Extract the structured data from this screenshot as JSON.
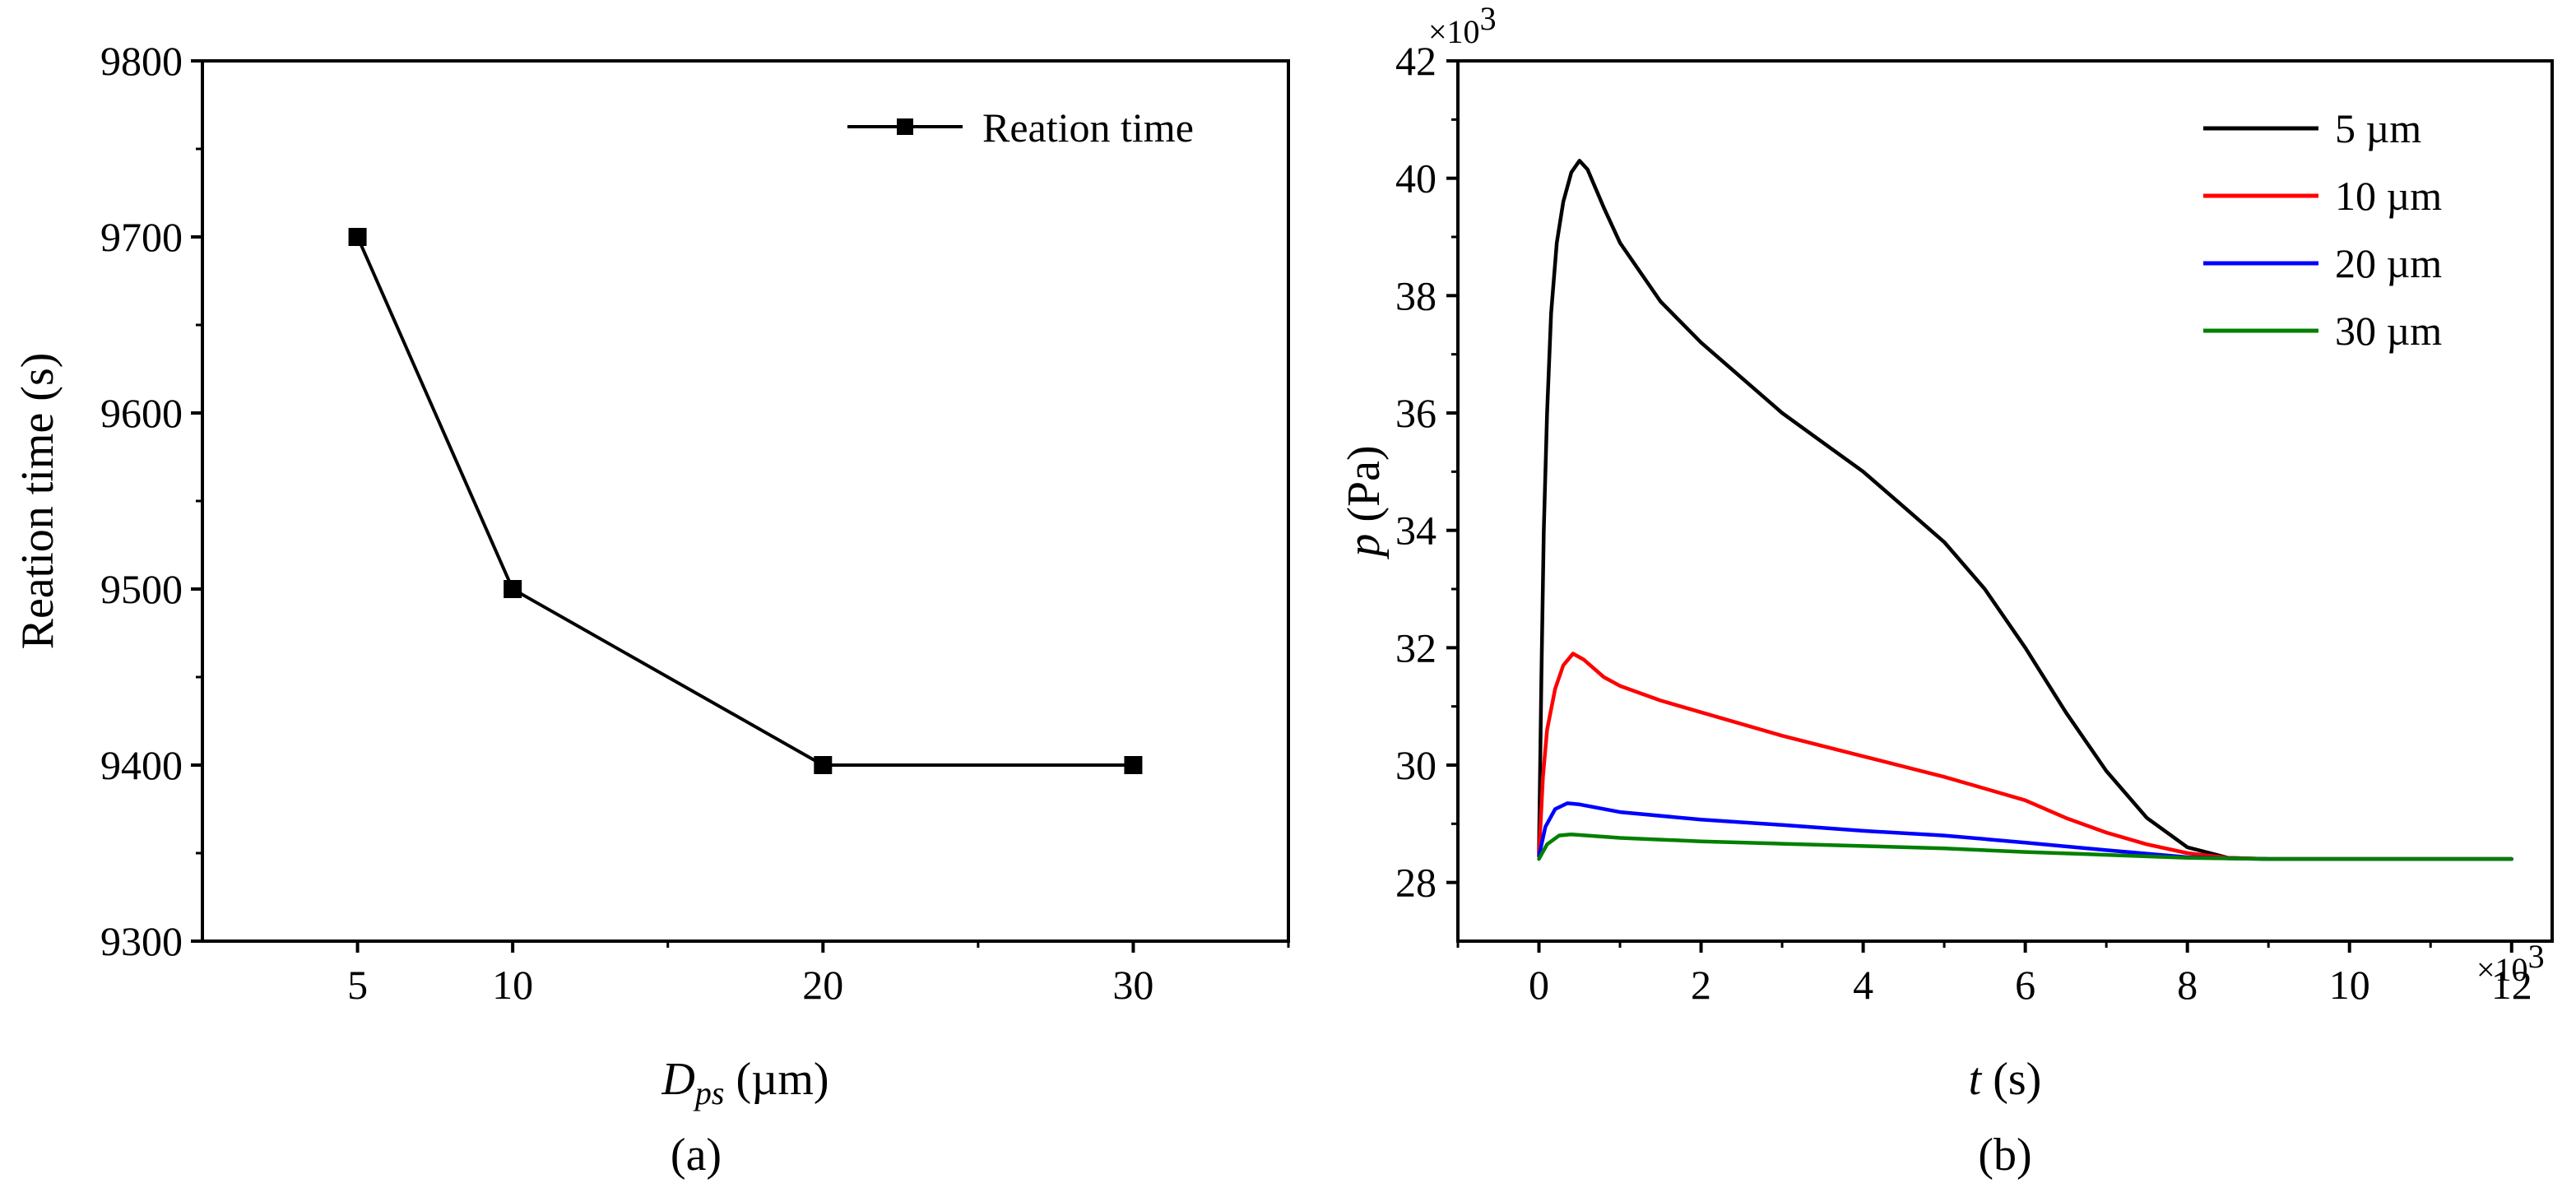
{
  "chart_data": [
    {
      "panel": "(a)",
      "type": "line",
      "x": [
        5,
        10,
        20,
        30
      ],
      "series": [
        {
          "name": "Reation time",
          "values": [
            9700,
            9500,
            9400,
            9400
          ],
          "color": "#000000",
          "marker": "square"
        }
      ],
      "xlabel_main": "D",
      "xlabel_sub": "ps",
      "xlabel_unit": " (µm)",
      "ylabel": "Reation time (s)",
      "xlim": [
        0,
        35
      ],
      "ylim": [
        9300,
        9800
      ],
      "x_ticks": [
        "5",
        "10",
        "20",
        "30"
      ],
      "y_ticks": [
        "9300",
        "9400",
        "9500",
        "9600",
        "9700",
        "9800"
      ],
      "caption": "(a)",
      "legend": "top-right",
      "grid": false
    },
    {
      "panel": "(b)",
      "type": "line",
      "series": [
        {
          "name": "5 µm",
          "color": "#000000",
          "peak": 40.3,
          "final": 28.4
        },
        {
          "name": "10 µm",
          "color": "#ff0000",
          "peak": 31.9,
          "final": 28.4
        },
        {
          "name": "20 µm",
          "color": "#0000ff",
          "peak": 29.35,
          "final": 28.4
        },
        {
          "name": "30 µm",
          "color": "#008000",
          "peak": 28.82,
          "final": 28.4
        }
      ],
      "curves": [
        [
          [
            0,
            28.5
          ],
          [
            0.03,
            31.5
          ],
          [
            0.06,
            34
          ],
          [
            0.1,
            36
          ],
          [
            0.15,
            37.7
          ],
          [
            0.22,
            38.9
          ],
          [
            0.3,
            39.6
          ],
          [
            0.4,
            40.1
          ],
          [
            0.5,
            40.3
          ],
          [
            0.6,
            40.15
          ],
          [
            0.8,
            39.5
          ],
          [
            1.0,
            38.9
          ],
          [
            1.5,
            37.9
          ],
          [
            2.0,
            37.2
          ],
          [
            2.5,
            36.6
          ],
          [
            3.0,
            36.0
          ],
          [
            3.5,
            35.5
          ],
          [
            4.0,
            35.0
          ],
          [
            4.5,
            34.4
          ],
          [
            5.0,
            33.8
          ],
          [
            5.5,
            33.0
          ],
          [
            6.0,
            32.0
          ],
          [
            6.5,
            30.9
          ],
          [
            7.0,
            29.9
          ],
          [
            7.5,
            29.1
          ],
          [
            8.0,
            28.6
          ],
          [
            8.5,
            28.42
          ],
          [
            9.0,
            28.4
          ],
          [
            9.5,
            28.4
          ],
          [
            10,
            28.4
          ],
          [
            11,
            28.4
          ],
          [
            12,
            28.4
          ]
        ],
        [
          [
            0,
            28.45
          ],
          [
            0.05,
            29.8
          ],
          [
            0.1,
            30.6
          ],
          [
            0.2,
            31.3
          ],
          [
            0.3,
            31.7
          ],
          [
            0.42,
            31.9
          ],
          [
            0.55,
            31.8
          ],
          [
            0.8,
            31.5
          ],
          [
            1.0,
            31.35
          ],
          [
            1.5,
            31.1
          ],
          [
            2.0,
            30.9
          ],
          [
            3.0,
            30.5
          ],
          [
            4.0,
            30.15
          ],
          [
            5.0,
            29.8
          ],
          [
            5.5,
            29.6
          ],
          [
            6.0,
            29.4
          ],
          [
            6.5,
            29.1
          ],
          [
            7.0,
            28.85
          ],
          [
            7.5,
            28.65
          ],
          [
            8.0,
            28.5
          ],
          [
            8.5,
            28.42
          ],
          [
            9.0,
            28.4
          ],
          [
            10,
            28.4
          ],
          [
            11,
            28.4
          ],
          [
            12,
            28.4
          ]
        ],
        [
          [
            0,
            28.45
          ],
          [
            0.08,
            28.95
          ],
          [
            0.2,
            29.25
          ],
          [
            0.35,
            29.35
          ],
          [
            0.5,
            29.33
          ],
          [
            1.0,
            29.2
          ],
          [
            2.0,
            29.07
          ],
          [
            3.0,
            28.98
          ],
          [
            4.0,
            28.88
          ],
          [
            5.0,
            28.8
          ],
          [
            6.0,
            28.68
          ],
          [
            7.0,
            28.55
          ],
          [
            8.0,
            28.43
          ],
          [
            8.5,
            28.41
          ],
          [
            9.0,
            28.4
          ],
          [
            10,
            28.4
          ],
          [
            12,
            28.4
          ]
        ],
        [
          [
            0,
            28.4
          ],
          [
            0.1,
            28.65
          ],
          [
            0.25,
            28.8
          ],
          [
            0.4,
            28.82
          ],
          [
            1.0,
            28.76
          ],
          [
            2.0,
            28.7
          ],
          [
            3.0,
            28.66
          ],
          [
            4.0,
            28.62
          ],
          [
            5.0,
            28.58
          ],
          [
            6.0,
            28.52
          ],
          [
            7.0,
            28.47
          ],
          [
            8.0,
            28.42
          ],
          [
            9.0,
            28.4
          ],
          [
            10,
            28.4
          ],
          [
            12,
            28.4
          ]
        ]
      ],
      "xlabel_main": "t",
      "xlabel_unit": " (s)",
      "ylabel_main": "p",
      "ylabel_unit": " (Pa)",
      "xlim": [
        -1,
        12.5
      ],
      "ylim": [
        27,
        42
      ],
      "x_ticks": [
        "0",
        "2",
        "4",
        "6",
        "8",
        "10",
        "12"
      ],
      "y_ticks": [
        "28",
        "30",
        "32",
        "34",
        "36",
        "38",
        "40",
        "42"
      ],
      "x_multiplier_base": "×10",
      "x_multiplier_exp": "3",
      "y_multiplier_base": "×10",
      "y_multiplier_exp": "3",
      "caption": "(b)",
      "legend": "top-right",
      "grid": false
    }
  ]
}
